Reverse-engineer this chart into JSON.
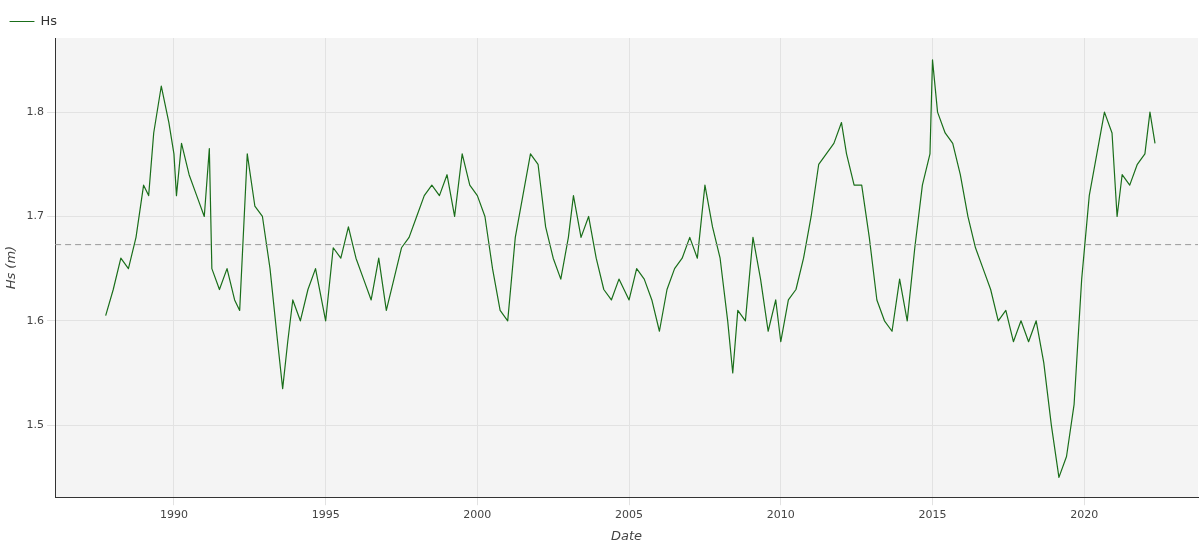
{
  "chart_data": {
    "type": "line",
    "xlabel": "Date",
    "ylabel": "Hs (m)",
    "x": [
      "1987-10",
      "1988-01",
      "1988-04",
      "1988-07",
      "1988-10",
      "1989-01",
      "1989-03",
      "1989-05",
      "1989-08",
      "1989-11",
      "1990-01",
      "1990-02",
      "1990-04",
      "1990-07",
      "1990-10",
      "1991-01",
      "1991-03",
      "1991-04",
      "1991-07",
      "1991-10",
      "1992-01",
      "1992-03",
      "1992-06",
      "1992-09",
      "1992-12",
      "1993-03",
      "1993-06",
      "1993-08",
      "1993-10",
      "1993-12",
      "1994-03",
      "1994-06",
      "1994-09",
      "1995-01",
      "1995-04",
      "1995-07",
      "1995-10",
      "1996-01",
      "1996-04",
      "1996-07",
      "1996-10",
      "1997-01",
      "1997-04",
      "1997-07",
      "1997-10",
      "1998-01",
      "1998-04",
      "1998-07",
      "1998-10",
      "1999-01",
      "1999-04",
      "1999-07",
      "1999-10",
      "2000-01",
      "2000-04",
      "2000-07",
      "2000-10",
      "2001-01",
      "2001-04",
      "2001-07",
      "2001-10",
      "2002-01",
      "2002-04",
      "2002-07",
      "2002-10",
      "2003-01",
      "2003-03",
      "2003-06",
      "2003-09",
      "2003-12",
      "2004-03",
      "2004-06",
      "2004-09",
      "2005-01",
      "2005-04",
      "2005-07",
      "2005-10",
      "2006-01",
      "2006-04",
      "2006-07",
      "2006-10",
      "2007-01",
      "2007-04",
      "2007-07",
      "2007-10",
      "2008-01",
      "2008-04",
      "2008-06",
      "2008-08",
      "2008-11",
      "2009-02",
      "2009-05",
      "2009-08",
      "2009-11",
      "2010-01",
      "2010-04",
      "2010-07",
      "2010-10",
      "2011-01",
      "2011-04",
      "2011-07",
      "2011-10",
      "2012-01",
      "2012-03",
      "2012-06",
      "2012-09",
      "2012-12",
      "2013-03",
      "2013-06",
      "2013-09",
      "2013-12",
      "2014-03",
      "2014-06",
      "2014-09",
      "2014-12",
      "2015-01",
      "2015-03",
      "2015-06",
      "2015-09",
      "2015-12",
      "2016-03",
      "2016-06",
      "2016-09",
      "2016-12",
      "2017-03",
      "2017-06",
      "2017-09",
      "2017-12",
      "2018-03",
      "2018-06",
      "2018-09",
      "2018-12",
      "2019-03",
      "2019-06",
      "2019-09",
      "2019-12",
      "2020-03",
      "2020-06",
      "2020-09",
      "2020-12",
      "2021-02",
      "2021-04",
      "2021-07",
      "2021-10",
      "2022-01",
      "2022-03",
      "2022-05"
    ],
    "series": [
      {
        "name": "Hs",
        "color": "#1a6e1a",
        "values": [
          1.605,
          1.63,
          1.66,
          1.65,
          1.68,
          1.73,
          1.72,
          1.78,
          1.825,
          1.79,
          1.76,
          1.72,
          1.77,
          1.74,
          1.72,
          1.7,
          1.765,
          1.65,
          1.63,
          1.65,
          1.62,
          1.61,
          1.76,
          1.71,
          1.7,
          1.65,
          1.58,
          1.535,
          1.58,
          1.62,
          1.6,
          1.63,
          1.65,
          1.6,
          1.67,
          1.66,
          1.69,
          1.66,
          1.64,
          1.62,
          1.66,
          1.61,
          1.64,
          1.67,
          1.68,
          1.7,
          1.72,
          1.73,
          1.72,
          1.74,
          1.7,
          1.76,
          1.73,
          1.72,
          1.7,
          1.65,
          1.61,
          1.6,
          1.68,
          1.72,
          1.76,
          1.75,
          1.69,
          1.66,
          1.64,
          1.68,
          1.72,
          1.68,
          1.7,
          1.66,
          1.63,
          1.62,
          1.64,
          1.62,
          1.65,
          1.64,
          1.62,
          1.59,
          1.63,
          1.65,
          1.66,
          1.68,
          1.66,
          1.73,
          1.69,
          1.66,
          1.6,
          1.55,
          1.61,
          1.6,
          1.68,
          1.64,
          1.59,
          1.62,
          1.58,
          1.62,
          1.63,
          1.66,
          1.7,
          1.75,
          1.76,
          1.77,
          1.79,
          1.76,
          1.73,
          1.73,
          1.68,
          1.62,
          1.6,
          1.59,
          1.64,
          1.6,
          1.67,
          1.73,
          1.76,
          1.85,
          1.8,
          1.78,
          1.77,
          1.74,
          1.7,
          1.67,
          1.65,
          1.63,
          1.6,
          1.61,
          1.58,
          1.6,
          1.58,
          1.6,
          1.56,
          1.5,
          1.45,
          1.47,
          1.52,
          1.64,
          1.72,
          1.76,
          1.8,
          1.78,
          1.7,
          1.74,
          1.73,
          1.75,
          1.76,
          1.8,
          1.77
        ]
      }
    ],
    "xlim": [
      "1986-02",
      "2023-10"
    ],
    "xticks": [
      "1990",
      "1995",
      "2000",
      "2005",
      "2010",
      "2015",
      "2020"
    ],
    "ylim": [
      1.431,
      1.871
    ],
    "yticks": [
      1.5,
      1.6,
      1.7,
      1.8
    ],
    "ref_lines": [
      {
        "axis": "y",
        "value": 1.673,
        "color": "#999999",
        "line_style": "dashed"
      }
    ],
    "grid": true,
    "legend": "top left",
    "marker": "none",
    "line_style": "solid"
  }
}
